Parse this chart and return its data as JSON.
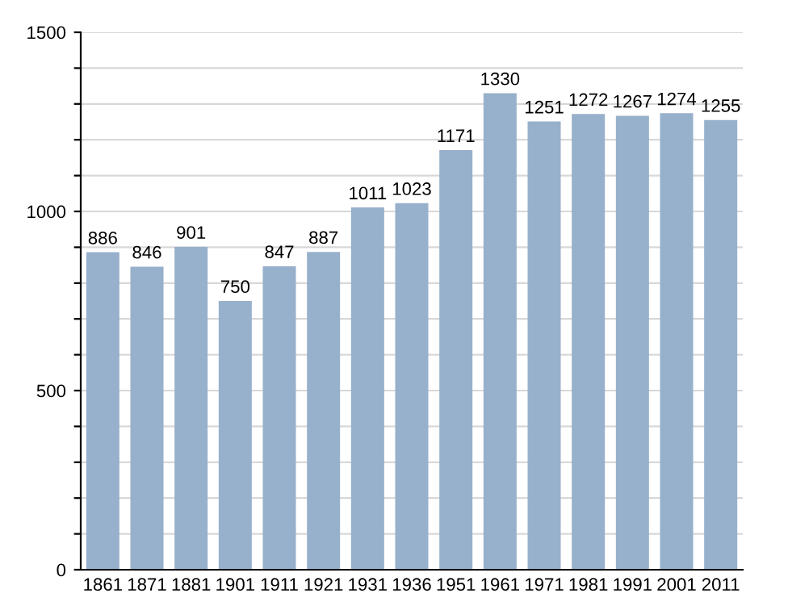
{
  "chart_data": {
    "type": "bar",
    "categories": [
      "1861",
      "1871",
      "1881",
      "1901",
      "1911",
      "1921",
      "1931",
      "1936",
      "1951",
      "1961",
      "1971",
      "1981",
      "1991",
      "2001",
      "2011"
    ],
    "values": [
      886,
      846,
      901,
      750,
      847,
      887,
      1011,
      1023,
      1171,
      1330,
      1251,
      1272,
      1267,
      1274,
      1255
    ],
    "color": "#97b0cb",
    "ylim": [
      0,
      1500
    ],
    "yticks": [
      0,
      {
        "value": 100,
        "label": null
      },
      {
        "value": 200,
        "label": null
      },
      {
        "value": 300,
        "label": null
      },
      {
        "value": 400,
        "label": null
      },
      500,
      {
        "value": 600,
        "label": null
      },
      {
        "value": 700,
        "label": null
      },
      {
        "value": 800,
        "label": null
      },
      {
        "value": 900,
        "label": null
      },
      1000,
      {
        "value": 1100,
        "label": null
      },
      {
        "value": 1200,
        "label": null
      },
      {
        "value": 1300,
        "label": null
      },
      {
        "value": 1400,
        "label": null
      },
      1500
    ],
    "grid": "y",
    "data_labels": true
  }
}
